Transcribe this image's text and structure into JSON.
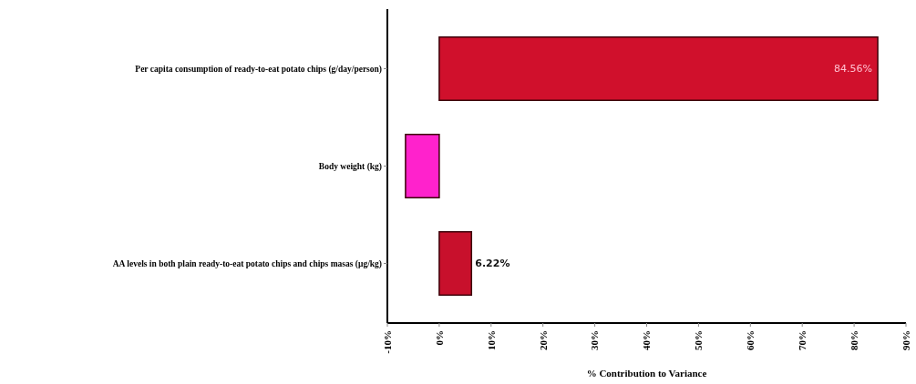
{
  "chart_data": {
    "type": "bar",
    "orientation": "horizontal",
    "xlabel": "% Contribution to Variance",
    "categories": [
      "Per capita consumption of ready-to-eat potato chips (g/day/person)",
      "Body weight (kg)",
      "AA levels in both plain ready-to-eat potato chips and chips masas (μg/kg)"
    ],
    "values": [
      84.56,
      -6.5,
      6.22
    ],
    "colors": [
      "#d0102c",
      "#ff22cc",
      "#c8102c"
    ],
    "value_labels": [
      "84.56%",
      null,
      "6.22%"
    ],
    "xlim": [
      -10,
      90
    ],
    "xticks": [
      {
        "value": -10,
        "label": "-10%"
      },
      {
        "value": 0,
        "label": "0%"
      },
      {
        "value": 10,
        "label": "10%"
      },
      {
        "value": 20,
        "label": "20%"
      },
      {
        "value": 30,
        "label": "30%"
      },
      {
        "value": 40,
        "label": "40%"
      },
      {
        "value": 50,
        "label": "50%"
      },
      {
        "value": 60,
        "label": "60%"
      },
      {
        "value": 70,
        "label": "70%"
      },
      {
        "value": 80,
        "label": "80%"
      },
      {
        "value": 90,
        "label": "90%"
      }
    ],
    "data_labels": false
  }
}
